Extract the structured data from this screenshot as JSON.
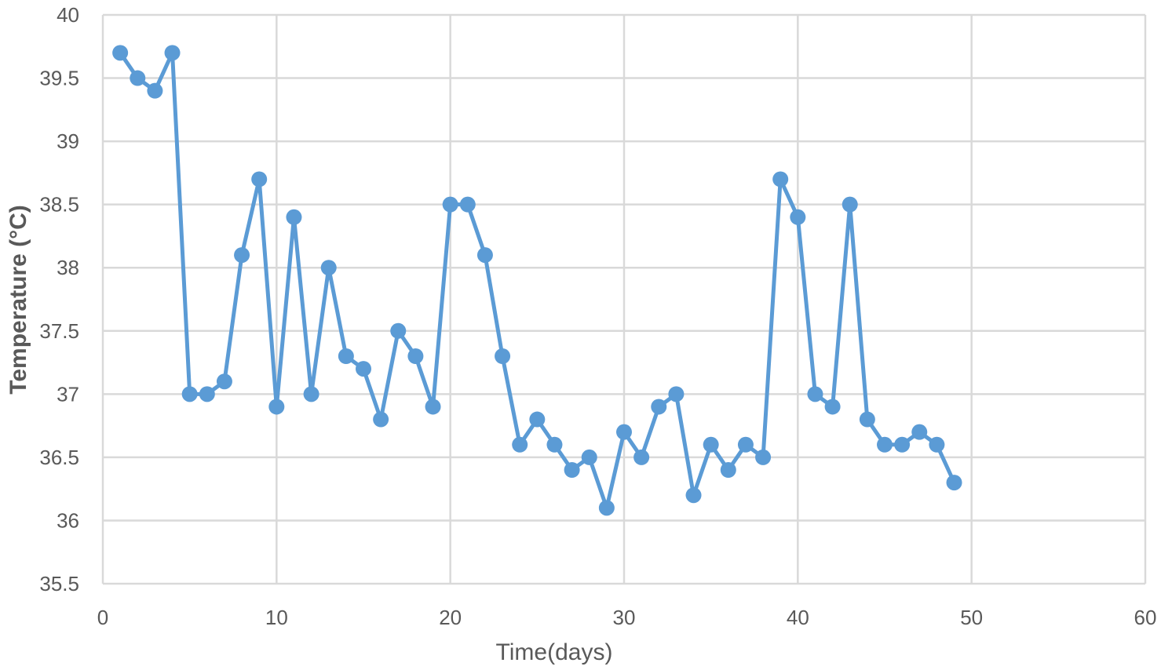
{
  "chart_data": {
    "type": "scatter",
    "title": "",
    "xlabel": "Time(days)",
    "ylabel": "Temperature (°C)",
    "xlim": [
      0,
      60
    ],
    "ylim": [
      35.5,
      40
    ],
    "x_ticks": [
      "0",
      "10",
      "20",
      "30",
      "40",
      "50",
      "60"
    ],
    "y_ticks": [
      "35.5",
      "36",
      "36.5",
      "37",
      "37.5",
      "38",
      "38.5",
      "39",
      "39.5",
      "40"
    ],
    "grid": true,
    "legend": "none",
    "color": "#5b9bd5",
    "grid_color": "#d9d9d9",
    "series": [
      {
        "x": [
          1,
          2,
          3,
          4,
          5,
          6,
          7,
          8,
          9,
          10,
          11,
          12,
          13,
          14,
          15,
          16,
          17,
          18,
          19,
          20,
          21,
          22,
          23,
          24,
          25,
          26,
          27,
          28,
          29,
          30,
          31,
          32,
          33,
          34,
          35,
          36,
          37,
          38,
          39,
          40,
          41,
          42,
          43,
          44,
          45,
          46,
          47,
          48,
          49
        ],
        "y": [
          39.7,
          39.5,
          39.4,
          39.7,
          37.0,
          37.0,
          37.1,
          38.1,
          38.7,
          36.9,
          38.4,
          37.0,
          38.0,
          37.3,
          37.2,
          36.8,
          37.5,
          37.3,
          36.9,
          38.5,
          38.5,
          38.1,
          37.3,
          36.6,
          36.8,
          36.6,
          36.4,
          36.5,
          36.1,
          36.7,
          36.5,
          36.9,
          37.0,
          36.2,
          36.6,
          36.4,
          36.6,
          36.5,
          38.7,
          38.4,
          37.0,
          36.9,
          38.5,
          36.8,
          36.6,
          36.6,
          36.7,
          36.6,
          36.3
        ]
      }
    ]
  }
}
